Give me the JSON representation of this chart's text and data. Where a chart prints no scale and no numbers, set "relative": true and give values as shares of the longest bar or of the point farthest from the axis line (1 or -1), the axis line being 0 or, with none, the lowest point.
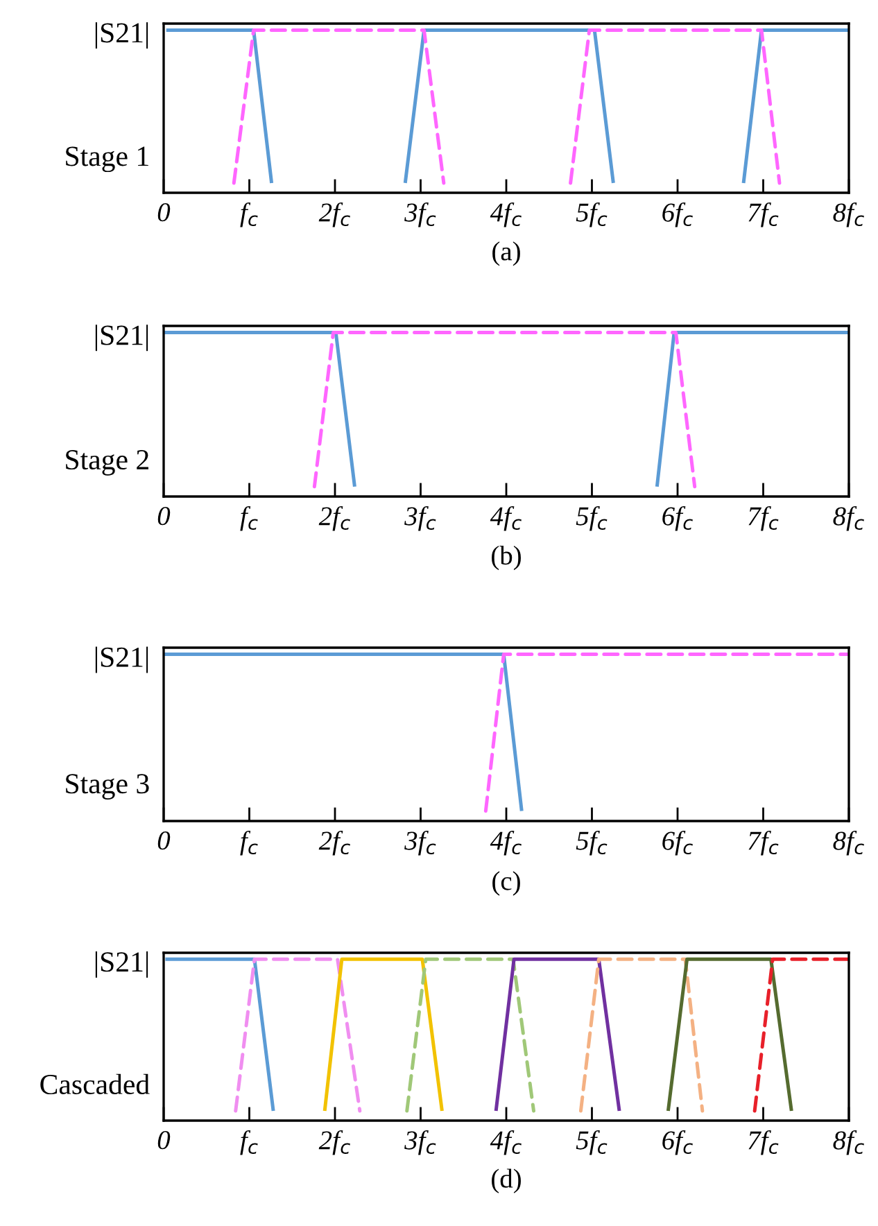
{
  "chart_data": [
    {
      "type": "line",
      "title": "(a)",
      "ylabel": "|S21|",
      "annotations": [
        "Stage 1"
      ],
      "relative": true,
      "grid": false,
      "xlim": [
        0,
        8
      ],
      "xticks": [
        0,
        {
          "value": 1,
          "label": "f$_{c}$"
        },
        {
          "value": 2,
          "label": "2f$_{c}$"
        },
        {
          "value": 3,
          "label": "3f$_{c}$"
        },
        {
          "value": 4,
          "label": "4f$_{c}$"
        },
        {
          "value": 5,
          "label": "5f$_{c}$"
        },
        {
          "value": 6,
          "label": "6f$_{c}$"
        },
        {
          "value": 7,
          "label": "7f$_{c}$"
        },
        {
          "value": 8,
          "label": "8f$_{c}$"
        }
      ],
      "series": [
        {
          "color": "#5b9bd5",
          "line_style": "solid",
          "x": [
            0.03,
            1.05,
            1.26,
            2.0,
            2.82,
            3.04,
            5.03,
            5.25,
            6.0,
            6.77,
            6.98,
            8
          ],
          "values": [
            1,
            1,
            0.06,
            null,
            0.06,
            1,
            1,
            0.06,
            null,
            0.06,
            1,
            1
          ]
        },
        {
          "color": "#ff66ff",
          "line_style": "dashed",
          "x": [
            0.82,
            1.05,
            3.04,
            3.27,
            4.0,
            4.75,
            4.97,
            6.98,
            7.19
          ],
          "values": [
            0.06,
            1,
            1,
            0.06,
            null,
            0.06,
            1,
            1,
            0.06
          ]
        }
      ]
    },
    {
      "type": "line",
      "title": "(b)",
      "ylabel": "|S21|",
      "annotations": [
        "Stage 2"
      ],
      "relative": true,
      "grid": false,
      "xlim": [
        0,
        8
      ],
      "xticks": [
        0,
        {
          "value": 1,
          "label": "f$_{c}$"
        },
        {
          "value": 2,
          "label": "2f$_{c}$"
        },
        {
          "value": 3,
          "label": "3f$_{c}$"
        },
        {
          "value": 4,
          "label": "4f$_{c}$"
        },
        {
          "value": 5,
          "label": "5f$_{c}$"
        },
        {
          "value": 6,
          "label": "6f$_{c}$"
        },
        {
          "value": 7,
          "label": "7f$_{c}$"
        },
        {
          "value": 8,
          "label": "8f$_{c}$"
        }
      ],
      "series": [
        {
          "color": "#5b9bd5",
          "line_style": "solid",
          "x": [
            0,
            2.01,
            2.23,
            4.0,
            5.76,
            5.96,
            8
          ],
          "values": [
            1,
            1,
            0.06,
            null,
            0.06,
            1,
            1
          ]
        },
        {
          "color": "#ff66ff",
          "line_style": "dashed",
          "x": [
            1.76,
            1.98,
            5.98,
            6.2
          ],
          "values": [
            0.06,
            1,
            1,
            0.06
          ]
        }
      ]
    },
    {
      "type": "line",
      "title": "(c)",
      "ylabel": "|S21|",
      "annotations": [
        "Stage 3"
      ],
      "relative": true,
      "grid": false,
      "xlim": [
        0,
        8
      ],
      "xticks": [
        0,
        {
          "value": 1,
          "label": "f$_{c}$"
        },
        {
          "value": 2,
          "label": "2f$_{c}$"
        },
        {
          "value": 3,
          "label": "3f$_{c}$"
        },
        {
          "value": 4,
          "label": "4f$_{c}$"
        },
        {
          "value": 5,
          "label": "5f$_{c}$"
        },
        {
          "value": 6,
          "label": "6f$_{c}$"
        },
        {
          "value": 7,
          "label": "7f$_{c}$"
        },
        {
          "value": 8,
          "label": "8f$_{c}$"
        }
      ],
      "series": [
        {
          "color": "#5b9bd5",
          "line_style": "solid",
          "x": [
            0,
            3.97,
            4.18
          ],
          "values": [
            1,
            1,
            0.06
          ]
        },
        {
          "color": "#ff66ff",
          "line_style": "dashed",
          "x": [
            3.76,
            3.97,
            8
          ],
          "values": [
            0.06,
            1,
            1
          ]
        }
      ]
    },
    {
      "type": "line",
      "title": "(d)",
      "ylabel": "|S21|",
      "annotations": [
        "Cascaded"
      ],
      "relative": true,
      "grid": false,
      "xlim": [
        0,
        8
      ],
      "xticks": [
        0,
        {
          "value": 1,
          "label": "f$_{c}$"
        },
        {
          "value": 2,
          "label": "2f$_{c}$"
        },
        {
          "value": 3,
          "label": "3f$_{c}$"
        },
        {
          "value": 4,
          "label": "4f$_{c}$"
        },
        {
          "value": 5,
          "label": "5f$_{c}$"
        },
        {
          "value": 6,
          "label": "6f$_{c}$"
        },
        {
          "value": 7,
          "label": "7f$_{c}$"
        },
        {
          "value": 8,
          "label": "8f$_{c}$"
        }
      ],
      "series": [
        {
          "color": "#5b9bd5",
          "line_style": "solid",
          "x": [
            0.02,
            1.06,
            1.28
          ],
          "values": [
            1,
            1,
            0.06
          ]
        },
        {
          "color": "#f08ef0",
          "line_style": "dashed",
          "x": [
            0.84,
            1.06,
            2.03,
            2.29
          ],
          "values": [
            0.06,
            1,
            1,
            0.06
          ]
        },
        {
          "color": "#f2c200",
          "line_style": "solid",
          "x": [
            1.88,
            2.08,
            3.02,
            3.25
          ],
          "values": [
            0.06,
            1,
            1,
            0.06
          ]
        },
        {
          "color": "#a0c878",
          "line_style": "dashed",
          "x": [
            2.84,
            3.06,
            4.08,
            4.32
          ],
          "values": [
            0.06,
            1,
            1,
            0.06
          ]
        },
        {
          "color": "#7030a0",
          "line_style": "solid",
          "x": [
            3.88,
            4.09,
            5.08,
            5.32
          ],
          "values": [
            0.06,
            1,
            1,
            0.06
          ]
        },
        {
          "color": "#f4b183",
          "line_style": "dashed",
          "x": [
            4.87,
            5.08,
            6.09,
            6.29
          ],
          "values": [
            0.06,
            1,
            1,
            0.06
          ]
        },
        {
          "color": "#556b2f",
          "line_style": "solid",
          "x": [
            5.89,
            6.11,
            7.09,
            7.33
          ],
          "values": [
            0.06,
            1,
            1,
            0.06
          ]
        },
        {
          "color": "#e8202a",
          "line_style": "dashed",
          "x": [
            6.9,
            7.11,
            8
          ],
          "values": [
            0.06,
            1,
            1
          ]
        }
      ]
    }
  ]
}
